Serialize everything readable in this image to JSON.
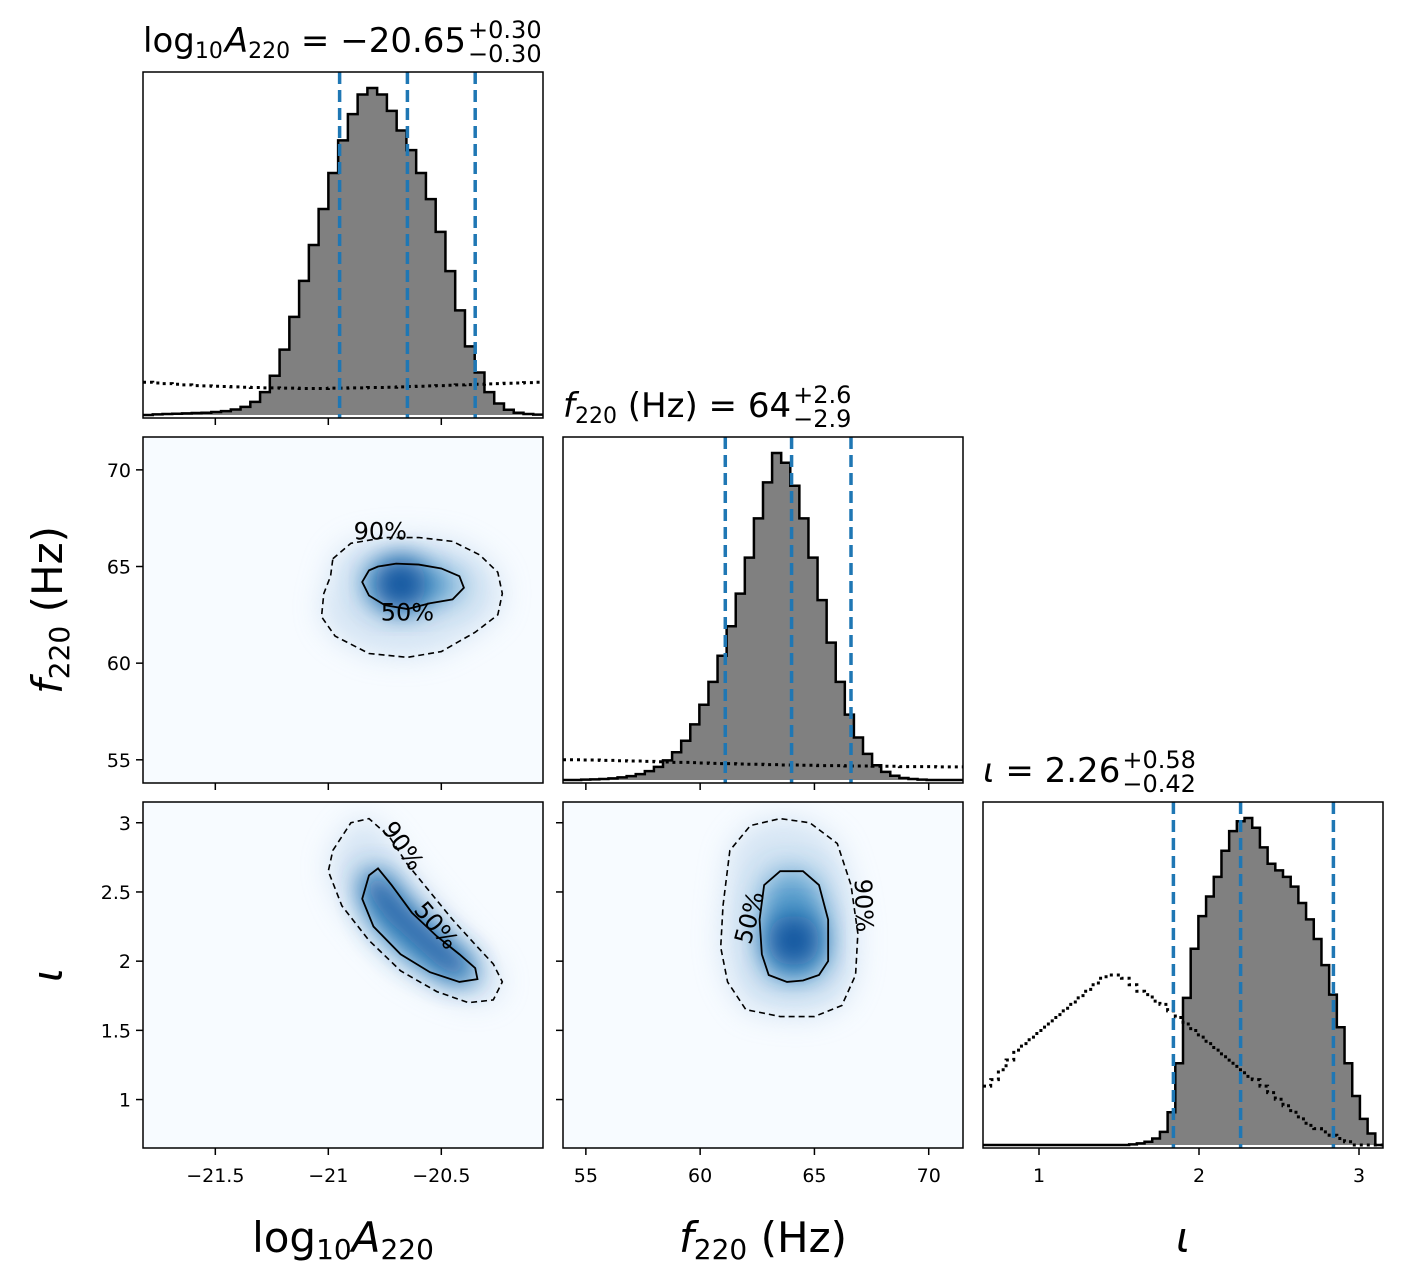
{
  "chart_data": [
    {
      "type": "histogram",
      "panel": "diag-0",
      "parameter": "log10A220",
      "title": {
        "base": "log",
        "sub1": "10",
        "mid": "A",
        "sub2": "220",
        "eq": " = −20.65",
        "sup": "+0.30",
        "lowsub": "−0.30"
      },
      "xlim": [
        -21.82,
        -20.05
      ],
      "quantiles": [
        -20.95,
        -20.65,
        -20.35
      ],
      "bin_width": 0.04,
      "posterior_weights": [
        0.0,
        0.002,
        0.003,
        0.004,
        0.005,
        0.006,
        0.007,
        0.009,
        0.012,
        0.017,
        0.025,
        0.04,
        0.07,
        0.12,
        0.2,
        0.3,
        0.41,
        0.52,
        0.63,
        0.74,
        0.84,
        0.92,
        0.98,
        1.0,
        0.98,
        0.93,
        0.87,
        0.81,
        0.74,
        0.66,
        0.56,
        0.44,
        0.32,
        0.21,
        0.13,
        0.07,
        0.035,
        0.016,
        0.007,
        0.003,
        0.001
      ],
      "prior_weights": [
        0.1,
        0.098,
        0.096,
        0.094,
        0.092,
        0.09,
        0.089,
        0.088,
        0.087,
        0.086,
        0.085,
        0.084,
        0.083,
        0.083,
        0.082,
        0.082,
        0.081,
        0.081,
        0.081,
        0.082,
        0.082,
        0.083,
        0.083,
        0.084,
        0.084,
        0.085,
        0.086,
        0.087,
        0.088,
        0.089,
        0.09,
        0.091,
        0.092,
        0.093,
        0.094,
        0.095,
        0.096,
        0.097,
        0.098,
        0.099,
        0.1
      ],
      "xticks": [
        -21.5,
        -21.0,
        -20.5
      ]
    },
    {
      "type": "heatmap",
      "panel": "joint-1-0",
      "x_parameter": "log10A220",
      "y_parameter": "f220",
      "xlim": [
        -21.82,
        -20.05
      ],
      "ylim": [
        53.8,
        71.7
      ],
      "peak": {
        "x": -20.68,
        "y": 64.1
      },
      "contour_50": [
        [
          -20.78,
          65.0
        ],
        [
          -20.7,
          65.15
        ],
        [
          -20.6,
          65.1
        ],
        [
          -20.5,
          64.9
        ],
        [
          -20.42,
          64.5
        ],
        [
          -20.4,
          63.9
        ],
        [
          -20.45,
          63.3
        ],
        [
          -20.55,
          63.1
        ],
        [
          -20.65,
          62.8
        ],
        [
          -20.75,
          63.0
        ],
        [
          -20.82,
          63.5
        ],
        [
          -20.85,
          64.2
        ],
        [
          -20.82,
          64.8
        ]
      ],
      "contour_90": [
        [
          -20.98,
          65.4
        ],
        [
          -20.9,
          66.2
        ],
        [
          -20.75,
          66.5
        ],
        [
          -20.6,
          66.5
        ],
        [
          -20.45,
          66.3
        ],
        [
          -20.33,
          65.6
        ],
        [
          -20.25,
          64.7
        ],
        [
          -20.23,
          63.6
        ],
        [
          -20.25,
          62.5
        ],
        [
          -20.35,
          61.6
        ],
        [
          -20.5,
          60.6
        ],
        [
          -20.65,
          60.3
        ],
        [
          -20.82,
          60.5
        ],
        [
          -20.97,
          61.4
        ],
        [
          -21.03,
          62.4
        ],
        [
          -21.02,
          63.6
        ],
        [
          -20.99,
          64.5
        ]
      ],
      "label_50": "50%",
      "label_90": "90%",
      "label_50_pos": [
        -20.65,
        62.2
      ],
      "label_90_pos": [
        -20.77,
        66.4
      ],
      "yticks": [
        55,
        60,
        65,
        70
      ]
    },
    {
      "type": "histogram",
      "panel": "diag-1",
      "parameter": "f220",
      "title": {
        "base": "f",
        "sub": "220",
        "eq": " (Hz) = 64",
        "sup": "+2.6",
        "lowsub": "−2.9"
      },
      "xlim": [
        54.0,
        71.5
      ],
      "quantiles": [
        61.1,
        64.0,
        66.6
      ],
      "bin_width": 0.4,
      "posterior_weights": [
        0.0,
        0.0,
        0.001,
        0.002,
        0.003,
        0.005,
        0.008,
        0.012,
        0.018,
        0.027,
        0.04,
        0.06,
        0.085,
        0.12,
        0.17,
        0.23,
        0.3,
        0.38,
        0.47,
        0.57,
        0.68,
        0.8,
        0.91,
        1.0,
        0.97,
        0.9,
        0.8,
        0.68,
        0.55,
        0.42,
        0.3,
        0.2,
        0.13,
        0.08,
        0.045,
        0.025,
        0.013,
        0.006,
        0.003,
        0.001,
        0.0,
        0.0,
        0.0,
        0.0
      ],
      "prior_weights": [
        0.062,
        0.062,
        0.061,
        0.061,
        0.06,
        0.06,
        0.059,
        0.058,
        0.058,
        0.057,
        0.056,
        0.055,
        0.054,
        0.054,
        0.053,
        0.052,
        0.051,
        0.05,
        0.05,
        0.049,
        0.048,
        0.048,
        0.047,
        0.047,
        0.046,
        0.046,
        0.045,
        0.045,
        0.044,
        0.044,
        0.044,
        0.043,
        0.043,
        0.043,
        0.042,
        0.042,
        0.042,
        0.041,
        0.041,
        0.041,
        0.041,
        0.04,
        0.04,
        0.04
      ],
      "xticks": [
        55,
        60,
        65,
        70
      ]
    },
    {
      "type": "heatmap",
      "panel": "joint-2-0",
      "x_parameter": "log10A220",
      "y_parameter": "iota",
      "xlim": [
        -21.82,
        -20.05
      ],
      "ylim": [
        0.65,
        3.15
      ],
      "ridge": [
        [
          -20.8,
          2.55
        ],
        [
          -20.7,
          2.35
        ],
        [
          -20.6,
          2.2
        ],
        [
          -20.5,
          2.05
        ],
        [
          -20.42,
          1.95
        ]
      ],
      "contour_50": [
        [
          -20.82,
          2.62
        ],
        [
          -20.78,
          2.67
        ],
        [
          -20.72,
          2.55
        ],
        [
          -20.63,
          2.35
        ],
        [
          -20.52,
          2.18
        ],
        [
          -20.42,
          2.05
        ],
        [
          -20.35,
          1.95
        ],
        [
          -20.34,
          1.87
        ],
        [
          -20.42,
          1.85
        ],
        [
          -20.55,
          1.92
        ],
        [
          -20.68,
          2.05
        ],
        [
          -20.8,
          2.25
        ],
        [
          -20.85,
          2.45
        ]
      ],
      "contour_90": [
        [
          -20.98,
          2.8
        ],
        [
          -20.9,
          3.0
        ],
        [
          -20.82,
          3.03
        ],
        [
          -20.73,
          2.9
        ],
        [
          -20.65,
          2.7
        ],
        [
          -20.55,
          2.5
        ],
        [
          -20.45,
          2.3
        ],
        [
          -20.35,
          2.12
        ],
        [
          -20.27,
          1.98
        ],
        [
          -20.23,
          1.85
        ],
        [
          -20.27,
          1.72
        ],
        [
          -20.38,
          1.7
        ],
        [
          -20.52,
          1.78
        ],
        [
          -20.68,
          1.93
        ],
        [
          -20.82,
          2.15
        ],
        [
          -20.94,
          2.4
        ],
        [
          -21.0,
          2.65
        ]
      ],
      "label_50": "50%",
      "label_90": "90%",
      "label_50_pos": [
        -20.55,
        2.22
      ],
      "label_90_pos": [
        -20.7,
        2.8
      ],
      "yticks": [
        1.0,
        1.5,
        2.0,
        2.5,
        3.0
      ],
      "xticks": [
        -21.5,
        -21.0,
        -20.5
      ]
    },
    {
      "type": "heatmap",
      "panel": "joint-2-1",
      "x_parameter": "f220",
      "y_parameter": "iota",
      "xlim": [
        54.0,
        71.5
      ],
      "ylim": [
        0.65,
        3.15
      ],
      "peak": {
        "x": 64.1,
        "y": 2.15
      },
      "contour_50": [
        [
          62.6,
          2.3
        ],
        [
          62.8,
          2.55
        ],
        [
          63.5,
          2.65
        ],
        [
          64.5,
          2.65
        ],
        [
          65.2,
          2.55
        ],
        [
          65.6,
          2.3
        ],
        [
          65.6,
          2.0
        ],
        [
          65.2,
          1.9
        ],
        [
          64.5,
          1.86
        ],
        [
          63.8,
          1.85
        ],
        [
          63.0,
          1.9
        ],
        [
          62.7,
          2.05
        ]
      ],
      "contour_90": [
        [
          61.0,
          2.4
        ],
        [
          61.3,
          2.8
        ],
        [
          62.2,
          2.98
        ],
        [
          63.5,
          3.03
        ],
        [
          64.8,
          3.0
        ],
        [
          66.0,
          2.85
        ],
        [
          66.6,
          2.55
        ],
        [
          66.9,
          2.2
        ],
        [
          66.8,
          1.9
        ],
        [
          66.2,
          1.68
        ],
        [
          65.0,
          1.6
        ],
        [
          63.5,
          1.6
        ],
        [
          62.0,
          1.65
        ],
        [
          61.2,
          1.85
        ],
        [
          60.9,
          2.1
        ]
      ],
      "label_50": "50%",
      "label_90": "90%",
      "label_50_pos": [
        62.5,
        2.3
      ],
      "label_90_pos": [
        66.8,
        2.4
      ],
      "xticks": [
        55,
        60,
        65,
        70
      ]
    },
    {
      "type": "histogram",
      "panel": "diag-2",
      "parameter": "iota",
      "title": {
        "base": "ι",
        "eq": " = 2.26",
        "sup": "+0.58",
        "lowsub": "−0.42"
      },
      "xlim": [
        0.65,
        3.15
      ],
      "quantiles": [
        1.84,
        2.26,
        2.84
      ],
      "bin_width": 0.05,
      "posterior_weights": [
        0.0,
        0.0,
        0.0,
        0.0,
        0.0,
        0.0,
        0.0,
        0.0,
        0.0,
        0.0,
        0.0,
        0.0,
        0.0,
        0.0,
        0.0,
        0.0,
        0.0,
        0.0,
        0.0,
        0.002,
        0.005,
        0.01,
        0.02,
        0.04,
        0.1,
        0.25,
        0.45,
        0.6,
        0.7,
        0.76,
        0.82,
        0.9,
        0.96,
        0.99,
        1.0,
        0.97,
        0.91,
        0.86,
        0.84,
        0.82,
        0.79,
        0.74,
        0.69,
        0.63,
        0.55,
        0.46,
        0.36,
        0.25,
        0.15,
        0.08,
        0.035,
        0.0
      ],
      "prior_weights": [
        0.18,
        0.2,
        0.23,
        0.26,
        0.29,
        0.31,
        0.33,
        0.35,
        0.37,
        0.39,
        0.41,
        0.43,
        0.45,
        0.47,
        0.49,
        0.51,
        0.52,
        0.52,
        0.51,
        0.49,
        0.47,
        0.46,
        0.44,
        0.43,
        0.41,
        0.39,
        0.37,
        0.35,
        0.33,
        0.31,
        0.29,
        0.27,
        0.25,
        0.23,
        0.21,
        0.2,
        0.18,
        0.16,
        0.14,
        0.12,
        0.1,
        0.08,
        0.06,
        0.05,
        0.04,
        0.03,
        0.02,
        0.01,
        0.0,
        0.0,
        0.0,
        0.0
      ],
      "xticks": [
        1,
        2,
        3
      ]
    }
  ],
  "axis_labels": {
    "x": [
      {
        "base": "log",
        "sub1": "10",
        "mid": "A",
        "sub2": "220",
        "tail": ""
      },
      {
        "base": "f",
        "sub1": "220",
        "mid": "",
        "sub2": "",
        "tail": " (Hz)"
      },
      {
        "base": "ι",
        "sub1": "",
        "mid": "",
        "sub2": "",
        "tail": ""
      }
    ],
    "y": [
      {
        "base": "f",
        "sub1": "220",
        "mid": "",
        "sub2": "",
        "tail": " (Hz)"
      },
      {
        "base": "ι",
        "sub1": "",
        "mid": "",
        "sub2": "",
        "tail": ""
      }
    ]
  },
  "colors": {
    "histogram_fill": "#808080",
    "quantile_line": "#1f77b4",
    "heatmap_low": "#f7fbff",
    "heatmap_high": "#08519c",
    "contour": "#000000"
  }
}
